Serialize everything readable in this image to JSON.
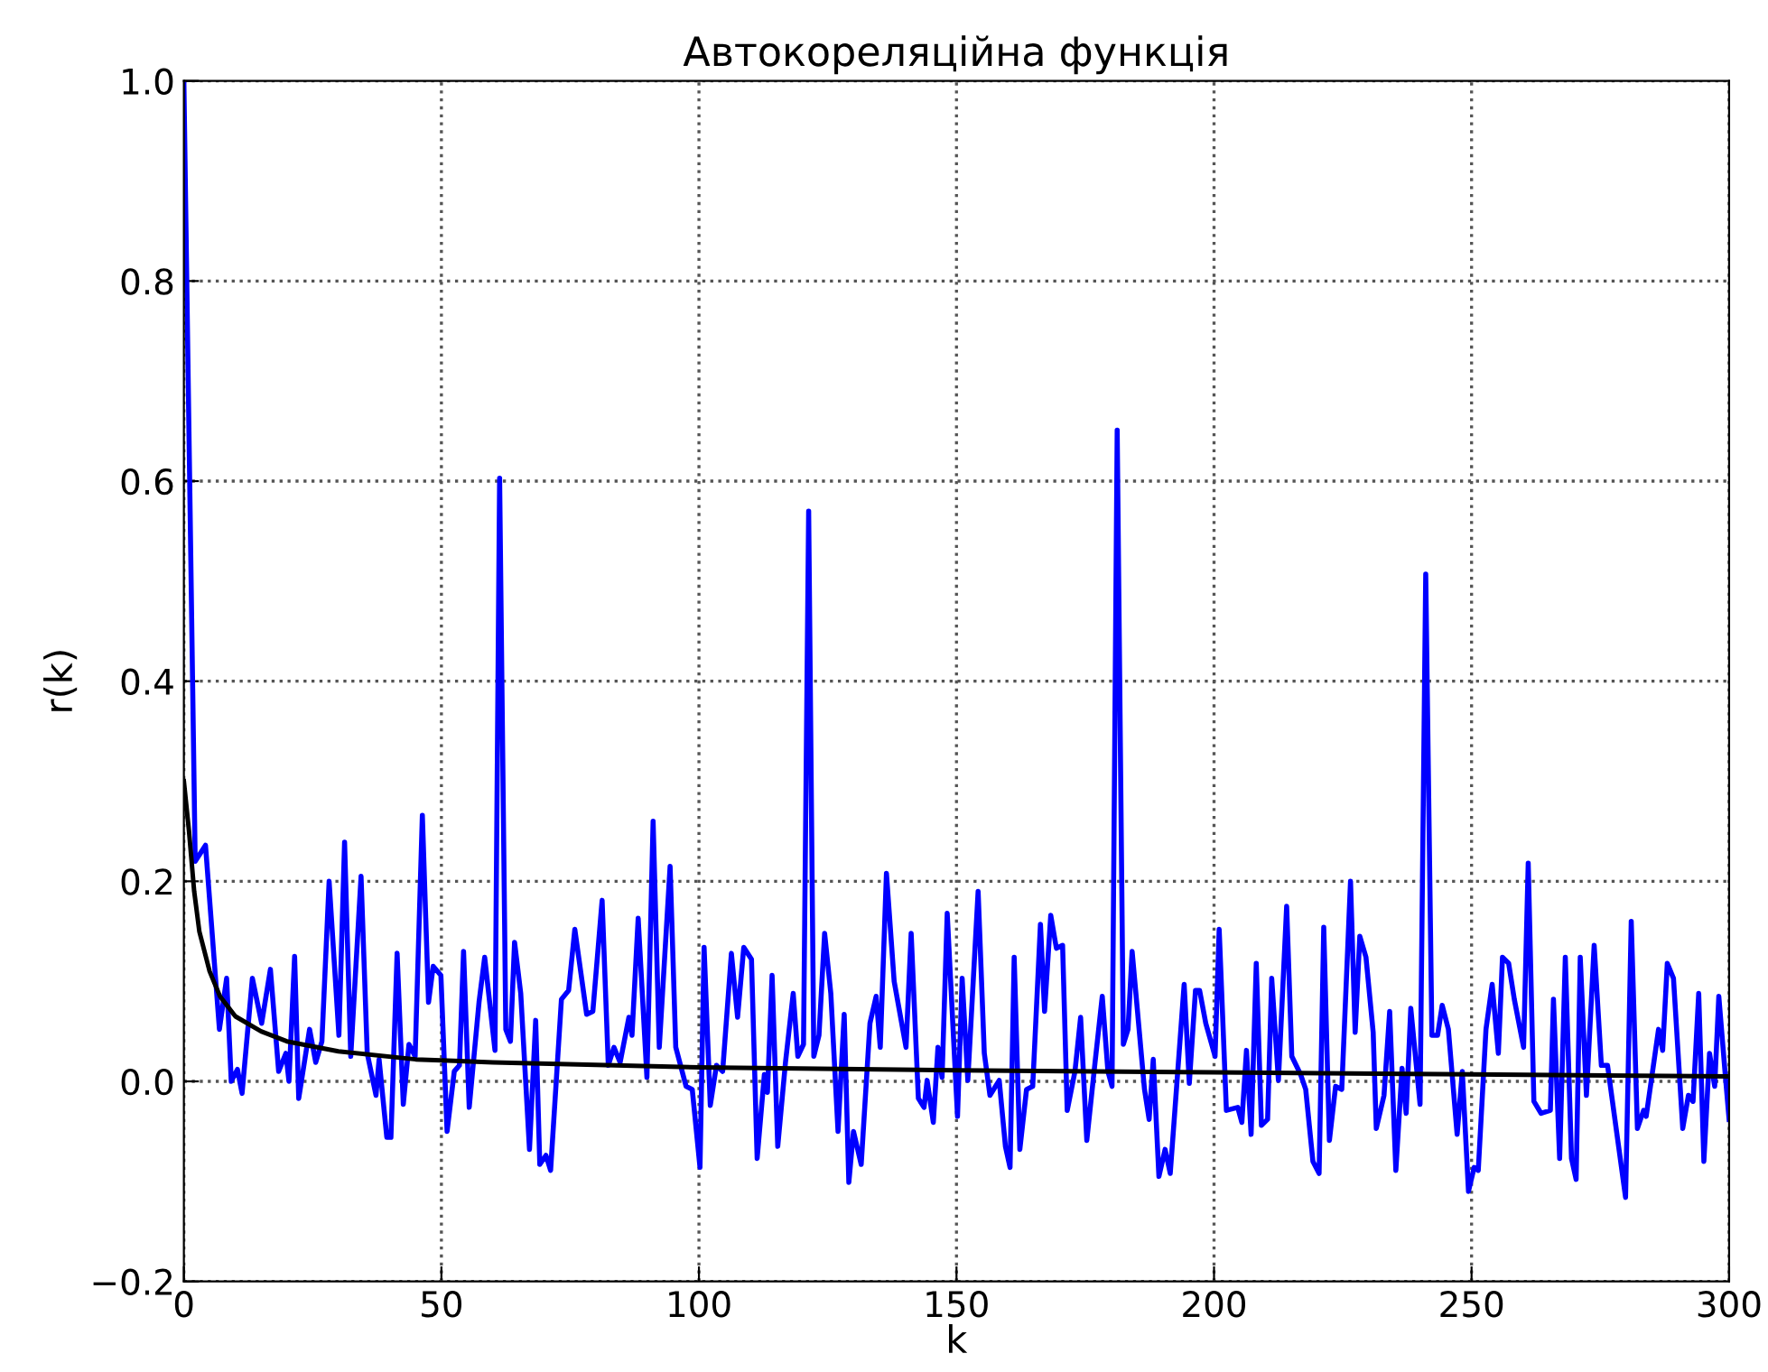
{
  "chart_data": {
    "type": "line",
    "title": "Автокореляційна функція",
    "xlabel": "k",
    "ylabel": "r(k)",
    "xlim": [
      0,
      300
    ],
    "xticks": [
      0,
      50,
      100,
      150,
      200,
      250,
      300
    ],
    "ylim": [
      -0.2,
      1.0
    ],
    "yticks": [
      {
        "value": -0.2,
        "label": "−0.2"
      },
      {
        "value": 0.0,
        "label": "0.0"
      },
      {
        "value": 0.2,
        "label": "0.2"
      },
      {
        "value": 0.4,
        "label": "0.4"
      },
      {
        "value": 0.6,
        "label": "0.6"
      },
      {
        "value": 0.8,
        "label": "0.8"
      },
      {
        "value": 1.0,
        "label": "1.0"
      }
    ],
    "grid": true,
    "line_style": "solid",
    "marker": "none",
    "series": [
      {
        "color": "#0000ff",
        "x": [
          0,
          2.2,
          4.2,
          6.9,
          8.3,
          9.2,
          10.4,
          11.3,
          13.3,
          15.1,
          16.8,
          18.4,
          19.8,
          20.4,
          21.5,
          22.3,
          24.4,
          25.6,
          26.8,
          28.2,
          30.1,
          31.2,
          32.4,
          34.4,
          35.6,
          37.3,
          37.9,
          39.4,
          40.2,
          41.4,
          42.6,
          43.7,
          44.9,
          46.3,
          47.5,
          48.4,
          49.9,
          51.1,
          52.5,
          53.5,
          54.3,
          55.4,
          57.3,
          58.4,
          60.4,
          61.3,
          62.5,
          63.4,
          64.2,
          65.4,
          67.1,
          68.3,
          69.1,
          70.3,
          71.2,
          73.3,
          74.7,
          75.9,
          78.2,
          79.4,
          81.2,
          82.4,
          83.5,
          84.7,
          86.4,
          87.0,
          88.2,
          89.9,
          91.1,
          92.3,
          94.4,
          95.5,
          97.5,
          98.7,
          100.2,
          101.0,
          102.2,
          103.4,
          104.6,
          106.3,
          107.5,
          108.7,
          110.2,
          111.3,
          112.7,
          113.3,
          114.2,
          115.3,
          116.8,
          118.3,
          119.2,
          120.3,
          121.3,
          122.3,
          123.3,
          124.4,
          125.6,
          127.0,
          128.2,
          129.1,
          130.0,
          131.5,
          133.2,
          134.4,
          135.2,
          136.4,
          137.9,
          140.2,
          141.2,
          142.6,
          143.7,
          144.3,
          145.5,
          146.4,
          147.2,
          148.2,
          150.2,
          151.1,
          152.2,
          154.2,
          155.4,
          156.5,
          158.3,
          159.5,
          160.4,
          161.2,
          162.3,
          163.6,
          164.8,
          166.3,
          167.1,
          168.3,
          169.4,
          170.6,
          171.5,
          173.0,
          174.1,
          175.3,
          176.9,
          178.3,
          179.4,
          180.2,
          181.2,
          182.4,
          183.3,
          184.1,
          186.5,
          187.4,
          188.2,
          189.3,
          190.5,
          191.5,
          194.2,
          195.2,
          196.4,
          197.2,
          198.4,
          200.2,
          201.0,
          202.4,
          204.6,
          205.4,
          206.3,
          207.2,
          208.2,
          209.2,
          210.4,
          211.2,
          212.5,
          214.1,
          215.1,
          216.8,
          217.8,
          219.2,
          220.4,
          221.3,
          222.4,
          223.6,
          224.8,
          226.5,
          227.4,
          228.3,
          229.5,
          230.9,
          231.5,
          233.0,
          234.1,
          235.3,
          236.5,
          237.3,
          238.2,
          240.0,
          241.1,
          242.3,
          243.4,
          244.3,
          245.5,
          247.2,
          248.2,
          249.4,
          250.5,
          251.3,
          252.8,
          254.0,
          255.2,
          256.0,
          257.2,
          258.3,
          260.1,
          261.0,
          262.1,
          263.5,
          265.3,
          265.9,
          267.1,
          268.2,
          269.4,
          270.3,
          271.1,
          272.3,
          273.8,
          275.2,
          276.4,
          279.9,
          281.0,
          282.2,
          283.4,
          283.9,
          286.3,
          287.1,
          288.0,
          289.2,
          291.0,
          292.1,
          293.0,
          294.1,
          295.1,
          296.2,
          297.2,
          298.0,
          299.2,
          300
        ],
        "values": [
          1.0,
          0.22,
          0.236,
          0.052,
          0.103,
          0.0,
          0.012,
          -0.012,
          0.103,
          0.058,
          0.112,
          0.01,
          0.028,
          0.0,
          0.125,
          -0.017,
          0.052,
          0.019,
          0.04,
          0.2,
          0.046,
          0.239,
          0.025,
          0.205,
          0.028,
          -0.014,
          0.022,
          -0.056,
          -0.056,
          0.128,
          -0.023,
          0.037,
          0.025,
          0.266,
          0.079,
          0.115,
          0.106,
          -0.05,
          0.01,
          0.016,
          0.13,
          -0.026,
          0.079,
          0.124,
          0.031,
          0.603,
          0.052,
          0.04,
          0.139,
          0.088,
          -0.068,
          0.061,
          -0.083,
          -0.074,
          -0.089,
          0.082,
          0.091,
          0.152,
          0.067,
          0.07,
          0.181,
          0.016,
          0.034,
          0.019,
          0.064,
          0.046,
          0.163,
          0.004,
          0.26,
          0.034,
          0.215,
          0.034,
          -0.005,
          -0.008,
          -0.086,
          0.134,
          -0.024,
          0.016,
          0.01,
          0.128,
          0.064,
          0.134,
          0.122,
          -0.077,
          0.007,
          -0.011,
          0.106,
          -0.065,
          0.019,
          0.088,
          0.025,
          0.037,
          0.57,
          0.025,
          0.046,
          0.148,
          0.088,
          -0.05,
          0.067,
          -0.101,
          -0.05,
          -0.083,
          0.058,
          0.085,
          0.034,
          0.208,
          0.1,
          0.034,
          0.148,
          -0.017,
          -0.026,
          0.001,
          -0.041,
          0.034,
          0.004,
          0.168,
          -0.035,
          0.103,
          0.001,
          0.19,
          0.028,
          -0.014,
          0.001,
          -0.065,
          -0.086,
          0.124,
          -0.068,
          -0.008,
          -0.005,
          0.157,
          0.07,
          0.166,
          0.133,
          0.136,
          -0.029,
          0.01,
          0.064,
          -0.059,
          0.019,
          0.085,
          0.01,
          -0.005,
          0.651,
          0.037,
          0.052,
          0.13,
          -0.008,
          -0.038,
          0.022,
          -0.095,
          -0.068,
          -0.092,
          0.097,
          -0.002,
          0.091,
          0.091,
          0.058,
          0.025,
          0.152,
          -0.029,
          -0.026,
          -0.041,
          0.031,
          -0.053,
          0.118,
          -0.044,
          -0.038,
          0.103,
          0.001,
          0.175,
          0.025,
          0.007,
          -0.008,
          -0.08,
          -0.092,
          0.154,
          -0.059,
          -0.005,
          -0.008,
          0.2,
          0.049,
          0.145,
          0.124,
          0.049,
          -0.047,
          -0.014,
          0.07,
          -0.089,
          0.013,
          -0.032,
          0.073,
          -0.023,
          0.507,
          0.046,
          0.046,
          0.076,
          0.052,
          -0.053,
          0.01,
          -0.11,
          -0.086,
          -0.089,
          0.052,
          0.097,
          0.028,
          0.124,
          0.118,
          0.082,
          0.034,
          0.218,
          -0.02,
          -0.032,
          -0.029,
          0.082,
          -0.077,
          0.124,
          -0.077,
          -0.098,
          0.124,
          -0.014,
          0.136,
          0.016,
          0.016,
          -0.116,
          0.16,
          -0.047,
          -0.029,
          -0.035,
          0.052,
          0.031,
          0.118,
          0.103,
          -0.047,
          -0.014,
          -0.02,
          0.088,
          -0.08,
          0.028,
          -0.005,
          0.085,
          0.01,
          -0.038
        ]
      },
      {
        "color": "#000000",
        "x": [
          0,
          1,
          2,
          3,
          5,
          7,
          10,
          15,
          20,
          30,
          45,
          60,
          100,
          150,
          200,
          250,
          300
        ],
        "values": [
          0.3,
          0.25,
          0.19,
          0.15,
          0.11,
          0.085,
          0.065,
          0.05,
          0.04,
          0.03,
          0.022,
          0.019,
          0.014,
          0.011,
          0.009,
          0.007,
          0.005
        ]
      }
    ]
  }
}
